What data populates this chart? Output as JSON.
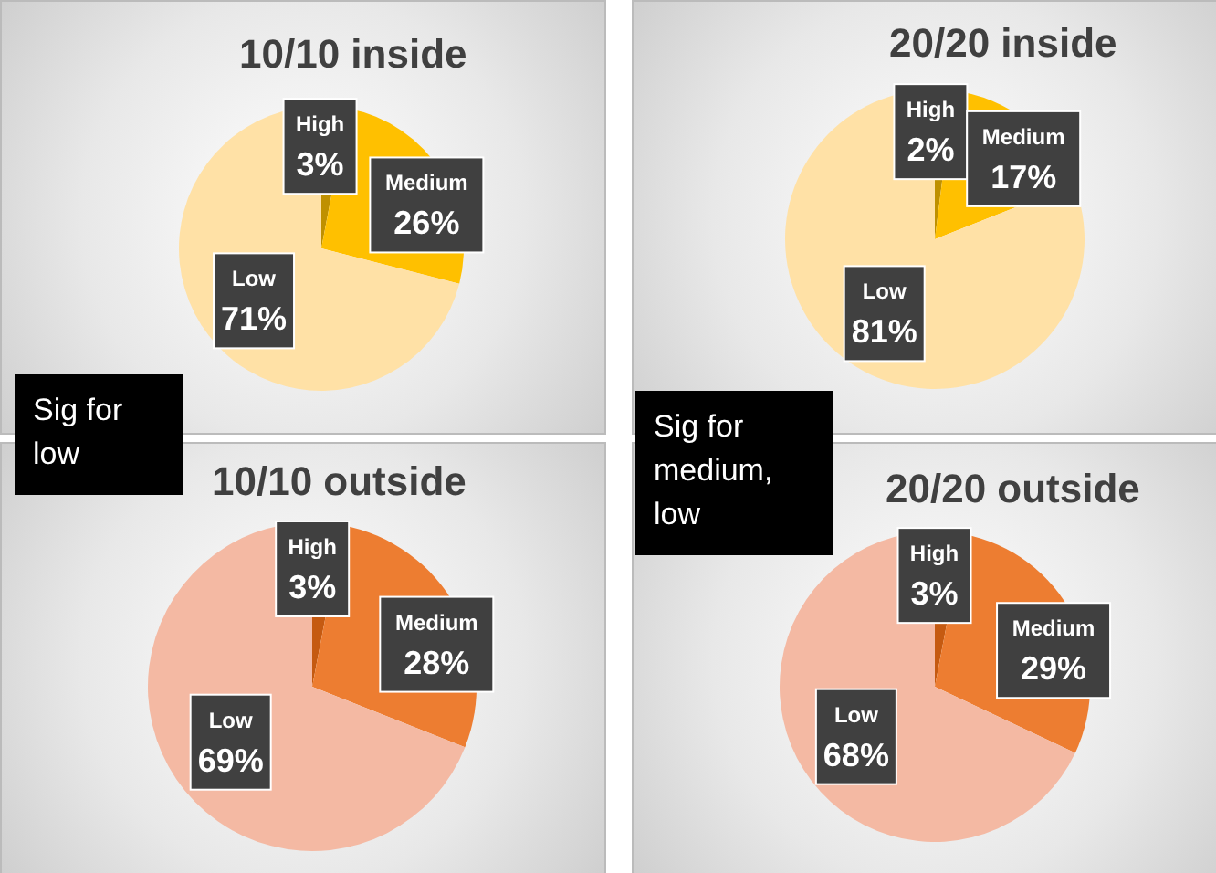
{
  "chart_data": [
    {
      "type": "pie",
      "title": "10/10 inside",
      "categories": [
        "High",
        "Medium",
        "Low"
      ],
      "values": [
        3,
        26,
        71
      ],
      "value_labels": [
        "3%",
        "26%",
        "71%"
      ],
      "colors": [
        "#bf9000",
        "#ffc000",
        "#ffe1a6"
      ]
    },
    {
      "type": "pie",
      "title": "20/20 inside",
      "categories": [
        "High",
        "Medium",
        "Low"
      ],
      "values": [
        2,
        17,
        81
      ],
      "value_labels": [
        "2%",
        "17%",
        "81%"
      ],
      "colors": [
        "#bf9000",
        "#ffc000",
        "#ffe1a6"
      ]
    },
    {
      "type": "pie",
      "title": "10/10 outside",
      "categories": [
        "High",
        "Medium",
        "Low"
      ],
      "values": [
        3,
        28,
        69
      ],
      "value_labels": [
        "3%",
        "28%",
        "69%"
      ],
      "colors": [
        "#c55a11",
        "#ed7d31",
        "#f4b9a3"
      ],
      "annotations": [
        "Sig for low"
      ]
    },
    {
      "type": "pie",
      "title": "20/20 outside",
      "categories": [
        "High",
        "Medium",
        "Low"
      ],
      "values": [
        3,
        29,
        68
      ],
      "value_labels": [
        "3%",
        "29%",
        "68%"
      ],
      "colors": [
        "#c55a11",
        "#ed7d31",
        "#f4b9a3"
      ],
      "annotations": [
        "Sig for medium, low"
      ]
    }
  ]
}
